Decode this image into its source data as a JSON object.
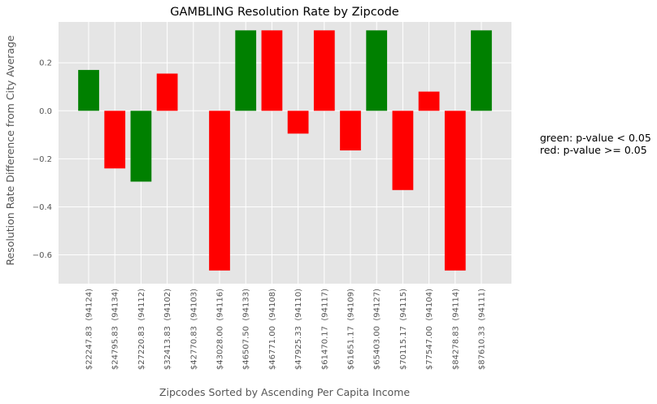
{
  "chart_data": {
    "type": "bar",
    "title": "GAMBLING Resolution Rate by Zipcode",
    "xlabel": "Zipcodes Sorted by Ascending Per Capita Income",
    "ylabel": "Resolution Rate Difference from City Average",
    "ylim": [
      -0.72,
      0.37
    ],
    "yticks": [
      -0.6,
      -0.4,
      -0.2,
      0.0,
      0.2
    ],
    "ytick_labels": [
      "−0.6",
      "−0.4",
      "−0.2",
      "0.0",
      "0.2"
    ],
    "grid": true,
    "categories": [
      "$22247.83  (94124)",
      "$24795.83  (94134)",
      "$27220.83  (94112)",
      "$32413.83  (94102)",
      "$42770.83  (94103)",
      "$43028.00  (94116)",
      "$46507.50  (94133)",
      "$46771.00  (94108)",
      "$47925.33  (94110)",
      "$61470.17  (94117)",
      "$61651.17  (94109)",
      "$65403.00  (94127)",
      "$70115.17  (94115)",
      "$77547.00  (94104)",
      "$84278.83  (94114)",
      "$87610.33  (94111)"
    ],
    "values": [
      0.17,
      -0.24,
      -0.295,
      0.155,
      0.0,
      -0.665,
      0.335,
      0.335,
      -0.095,
      0.335,
      -0.165,
      0.335,
      -0.33,
      0.08,
      -0.665,
      0.335
    ],
    "significant": [
      true,
      false,
      true,
      false,
      false,
      false,
      true,
      false,
      false,
      false,
      false,
      true,
      false,
      false,
      false,
      true
    ],
    "colors": {
      "significant": "#008000",
      "not_significant": "#ff0000",
      "background": "#e5e5e5",
      "grid": "#ffffff"
    }
  },
  "legend_note": {
    "line1": "green: p-value < 0.05",
    "line2": "red: p-value >= 0.05"
  }
}
